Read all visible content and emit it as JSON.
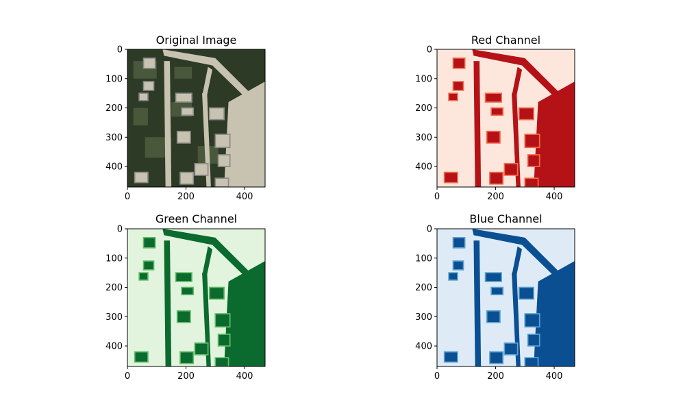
{
  "chart_data": [
    {
      "type": "image",
      "title": "Original Image",
      "colormap": "rgb",
      "xlim": [
        0,
        470
      ],
      "ylim": [
        470,
        0
      ],
      "xticks": [
        0,
        200,
        400
      ],
      "yticks": [
        0,
        100,
        200,
        300,
        400
      ],
      "xtick_labels": [
        "0",
        "200",
        "400"
      ],
      "ytick_labels": [
        "0",
        "100",
        "200",
        "300",
        "400"
      ],
      "palette": {
        "light": "#c8c2b0",
        "mid": "#5e6a4a",
        "dark": "#2c3a26"
      }
    },
    {
      "type": "image",
      "title": "Red Channel",
      "colormap": "Reds",
      "xlim": [
        0,
        470
      ],
      "ylim": [
        470,
        0
      ],
      "xticks": [
        0,
        200,
        400
      ],
      "yticks": [
        0,
        100,
        200,
        300,
        400
      ],
      "xtick_labels": [
        "0",
        "200",
        "400"
      ],
      "ytick_labels": [
        "0",
        "100",
        "200",
        "300",
        "400"
      ],
      "palette": {
        "light": "#fde6dc",
        "mid": "#f26a4c",
        "dark": "#b51217"
      }
    },
    {
      "type": "image",
      "title": "Green Channel",
      "colormap": "Greens",
      "xlim": [
        0,
        470
      ],
      "ylim": [
        470,
        0
      ],
      "xticks": [
        0,
        200,
        400
      ],
      "yticks": [
        0,
        100,
        200,
        300,
        400
      ],
      "xtick_labels": [
        "0",
        "200",
        "400"
      ],
      "ytick_labels": [
        "0",
        "100",
        "200",
        "300",
        "400"
      ],
      "palette": {
        "light": "#e2f4dd",
        "mid": "#64bb6a",
        "dark": "#0b6a2e"
      }
    },
    {
      "type": "image",
      "title": "Blue Channel",
      "colormap": "Blues",
      "xlim": [
        0,
        470
      ],
      "ylim": [
        470,
        0
      ],
      "xticks": [
        0,
        200,
        400
      ],
      "yticks": [
        0,
        100,
        200,
        300,
        400
      ],
      "xtick_labels": [
        "0",
        "200",
        "400"
      ],
      "ytick_labels": [
        "0",
        "100",
        "200",
        "300",
        "400"
      ],
      "palette": {
        "light": "#deebf7",
        "mid": "#5ba1d0",
        "dark": "#0b4f93"
      }
    }
  ]
}
